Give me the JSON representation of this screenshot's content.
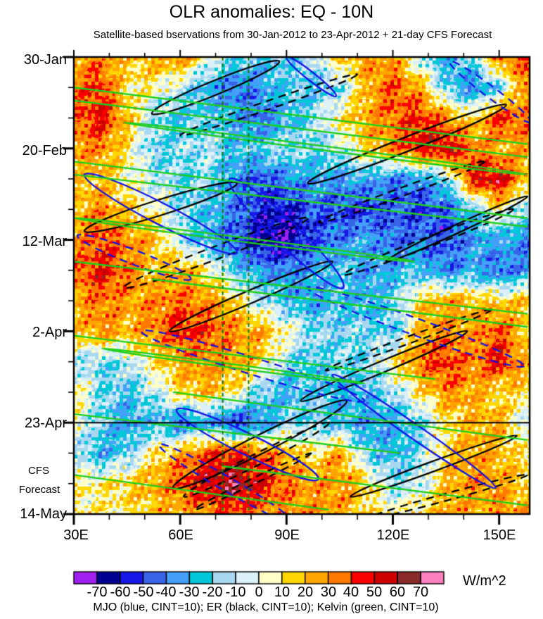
{
  "title": "OLR anomalies: EQ - 10N",
  "subtitle": "Satellite-based bservations from 30-Jan-2012 to 23-Apr-2012 + 21-day CFS Forecast",
  "caption": "MJO (blue, CINT=10); ER (black, CINT=10); Kelvin (green, CINT=10)",
  "axes": {
    "x": {
      "tick_labels": [
        "30E",
        "60E",
        "90E",
        "120E",
        "150E"
      ],
      "tick_lons": [
        30,
        60,
        90,
        120,
        150
      ],
      "minor_step_deg": 10,
      "range_lon": [
        30,
        158.6
      ]
    },
    "y": {
      "tick_labels": [
        "30-Jan",
        "20-Feb",
        "12-Mar",
        "2-Apr",
        "23-Apr",
        "14-May"
      ],
      "tick_days": [
        0,
        21,
        42,
        63,
        84,
        105
      ],
      "minor_step_days": 7,
      "range_days": [
        0,
        105
      ]
    },
    "forecast_label": [
      "CFS",
      "Forecast"
    ]
  },
  "colorbar": {
    "units": "W/m^2",
    "tick_labels": [
      "-70",
      "-60",
      "-50",
      "-40",
      "-30",
      "-20",
      "-10",
      "0",
      "10",
      "20",
      "30",
      "40",
      "50",
      "60",
      "70"
    ],
    "levels": [
      -70,
      -60,
      -50,
      -40,
      -30,
      -20,
      -10,
      0,
      10,
      20,
      30,
      40,
      50,
      60,
      70
    ],
    "colors": [
      "#A020F0",
      "#000090",
      "#1717E8",
      "#3864E8",
      "#44A0F8",
      "#00C8D8",
      "#A8D8F0",
      "#DCF0FA",
      "#FFFFC8",
      "#FFD700",
      "#FFA500",
      "#FF7800",
      "#FA0000",
      "#CD0000",
      "#8B2A2A",
      "#FF80C0"
    ]
  },
  "chart_data": {
    "type": "heatmap",
    "title": "OLR anomalies: EQ - 10N",
    "units": "W/m^2",
    "xlabel": "longitude",
    "ylabel": "time (30-Jan-2012 to 14-May-2012, forecast after 23-Apr)",
    "x_lons": [
      30,
      37.5,
      45,
      52.5,
      60,
      67.5,
      75,
      82.5,
      90,
      97.5,
      105,
      112.5,
      120,
      127.5,
      135,
      142.5,
      150,
      157.5
    ],
    "y_days": [
      0,
      7,
      14,
      21,
      28,
      35,
      42,
      49,
      56,
      63,
      70,
      77,
      84,
      91,
      98,
      105
    ],
    "y_dates": [
      "30-Jan",
      "6-Feb",
      "13-Feb",
      "20-Feb",
      "27-Feb",
      "5-Mar",
      "12-Mar",
      "19-Mar",
      "26-Mar",
      "2-Apr",
      "9-Apr",
      "16-Apr",
      "23-Apr",
      "30-Apr",
      "7-May",
      "14-May"
    ],
    "values_wm2_estimated": [
      [
        25,
        30,
        15,
        25,
        30,
        5,
        -15,
        -25,
        -20,
        -10,
        15,
        30,
        25,
        -10,
        -30,
        -15,
        35,
        40
      ],
      [
        30,
        45,
        10,
        5,
        -10,
        -30,
        -45,
        -35,
        -20,
        -25,
        -15,
        20,
        40,
        25,
        -20,
        -40,
        -20,
        30
      ],
      [
        35,
        50,
        20,
        -15,
        -25,
        -20,
        -30,
        -45,
        -30,
        -15,
        10,
        25,
        35,
        45,
        30,
        10,
        45,
        35
      ],
      [
        25,
        30,
        10,
        -20,
        -15,
        -10,
        -25,
        -20,
        -10,
        -20,
        -10,
        15,
        30,
        50,
        55,
        35,
        20,
        25
      ],
      [
        15,
        20,
        5,
        -10,
        -20,
        -15,
        -35,
        -50,
        -40,
        -30,
        -35,
        -30,
        -40,
        -35,
        -20,
        50,
        55,
        20
      ],
      [
        20,
        30,
        15,
        5,
        -15,
        -25,
        -40,
        -55,
        -60,
        -45,
        -50,
        -55,
        -45,
        -55,
        -45,
        -25,
        10,
        -20
      ],
      [
        25,
        40,
        30,
        20,
        -10,
        -30,
        -45,
        -65,
        -70,
        -50,
        -40,
        -30,
        -45,
        -40,
        -50,
        -35,
        -30,
        -40
      ],
      [
        35,
        50,
        35,
        15,
        25,
        10,
        -20,
        -35,
        -40,
        -30,
        -20,
        -35,
        -30,
        -25,
        -40,
        -30,
        -45,
        -35
      ],
      [
        20,
        35,
        25,
        30,
        35,
        30,
        15,
        -10,
        -25,
        -35,
        -25,
        -30,
        -20,
        15,
        25,
        20,
        15,
        20
      ],
      [
        15,
        30,
        20,
        30,
        45,
        40,
        30,
        25,
        5,
        -15,
        -20,
        -15,
        -25,
        20,
        30,
        25,
        40,
        15
      ],
      [
        -10,
        -20,
        -10,
        10,
        25,
        30,
        25,
        15,
        -15,
        -25,
        -15,
        -20,
        10,
        35,
        45,
        30,
        50,
        20
      ],
      [
        10,
        -15,
        -25,
        -10,
        15,
        20,
        10,
        -20,
        -30,
        -20,
        -30,
        -25,
        -15,
        10,
        30,
        25,
        10,
        15
      ],
      [
        5,
        -20,
        -35,
        -25,
        -45,
        -30,
        -55,
        -40,
        -15,
        -20,
        -25,
        -35,
        -30,
        -20,
        10,
        20,
        25,
        -10
      ],
      [
        -10,
        -30,
        -20,
        10,
        25,
        40,
        50,
        35,
        20,
        10,
        25,
        -20,
        -30,
        -15,
        15,
        25,
        20,
        10
      ],
      [
        5,
        10,
        15,
        25,
        40,
        55,
        65,
        50,
        35,
        25,
        30,
        15,
        -15,
        -10,
        20,
        30,
        25,
        15
      ],
      [
        10,
        5,
        10,
        15,
        20,
        30,
        35,
        30,
        25,
        30,
        25,
        10,
        5,
        15,
        25,
        20,
        30,
        25
      ]
    ],
    "overlay_colors": {
      "MJO": "#1212E8",
      "ER": "#000000",
      "Kelvin": "#1FCE1F",
      "reference_green": "#0B7A0B"
    },
    "reference_lines": {
      "vertical_dashed_green_lons": [
        72,
        79.3
      ],
      "horizontal_black_line_date": "23-Apr",
      "horizontal_black_line_day": 84
    },
    "waves": [
      {
        "type": "ER",
        "style": "solid",
        "path": [
          52,
          13,
          88,
          1
        ],
        "hw": 10
      },
      {
        "type": "ER",
        "style": "dashed",
        "path": [
          60,
          18,
          110,
          4
        ],
        "hw": 6
      },
      {
        "type": "ER",
        "style": "solid",
        "path": [
          33,
          40,
          76,
          29
        ],
        "hw": 11
      },
      {
        "type": "ER",
        "style": "solid",
        "path": [
          96,
          29,
          152,
          11
        ],
        "hw": 10
      },
      {
        "type": "ER",
        "style": "dashed",
        "path": [
          99,
          38,
          146,
          24
        ],
        "hw": 6
      },
      {
        "type": "ER",
        "style": "dashed",
        "path": [
          44,
          53,
          96,
          37
        ],
        "hw": 9
      },
      {
        "type": "ER",
        "style": "solid",
        "path": [
          57,
          63,
          103,
          47
        ],
        "hw": 9
      },
      {
        "type": "ER",
        "style": "dashed",
        "path": [
          106,
          50,
          154,
          35
        ],
        "hw": 7
      },
      {
        "type": "ER",
        "style": "solid",
        "path": [
          118,
          47,
          158,
          32
        ],
        "hw": 6
      },
      {
        "type": "ER",
        "style": "solid",
        "path": [
          94,
          79,
          141,
          63
        ],
        "hw": 8
      },
      {
        "type": "ER",
        "style": "dashed",
        "path": [
          101,
          72,
          148,
          58
        ],
        "hw": 5
      },
      {
        "type": "ER",
        "style": "solid",
        "path": [
          58,
          99,
          107,
          79
        ],
        "hw": 13
      },
      {
        "type": "ER",
        "style": "dashed",
        "path": [
          61,
          101,
          102,
          84
        ],
        "hw": 8
      },
      {
        "type": "ER",
        "style": "dashed",
        "path": [
          64,
          104,
          97,
          91
        ],
        "hw": 4
      },
      {
        "type": "ER",
        "style": "solid",
        "path": [
          108,
          101,
          155,
          87
        ],
        "hw": 7
      },
      {
        "type": "ER",
        "style": "dashed",
        "path": [
          113,
          106,
          158,
          96
        ],
        "hw": 5
      },
      {
        "type": "MJO",
        "style": "solid",
        "path": [
          33,
          27,
          76,
          45
        ],
        "hw": 15
      },
      {
        "type": "MJO",
        "style": "solid",
        "path": [
          74,
          28,
          106,
          53
        ],
        "hw": 17
      },
      {
        "type": "MJO",
        "style": "dashed",
        "path": [
          31,
          41,
          63,
          51
        ],
        "hw": 10
      },
      {
        "type": "MJO",
        "style": "dashed",
        "path": [
          49,
          63,
          112,
          79
        ],
        "hw": 12
      },
      {
        "type": "MJO",
        "style": "dashed",
        "path": [
          96,
          53,
          157,
          71
        ],
        "hw": 12
      },
      {
        "type": "MJO",
        "style": "solid",
        "path": [
          59,
          81,
          99,
          97
        ],
        "hw": 15
      },
      {
        "type": "MJO",
        "style": "solid",
        "path": [
          103,
          73,
          149,
          99
        ],
        "hw": 10
      },
      {
        "type": "MJO",
        "style": "dashed",
        "path": [
          54,
          89,
          92,
          107
        ],
        "hw": 10
      },
      {
        "type": "MJO",
        "style": "dashed",
        "path": [
          136,
          1,
          159,
          15
        ],
        "hw": 8
      },
      {
        "type": "MJO",
        "style": "solid",
        "path": [
          90,
          0,
          104,
          9
        ],
        "hw": 6
      },
      {
        "type": "Kelvin",
        "style": "solid",
        "path": [
          30,
          7,
          158,
          20
        ],
        "hw": 0
      },
      {
        "type": "Kelvin",
        "style": "solid",
        "path": [
          30,
          10,
          158,
          23
        ],
        "hw": 0
      },
      {
        "type": "Kelvin",
        "style": "solid",
        "path": [
          44,
          15,
          158,
          27
        ],
        "hw": 3
      },
      {
        "type": "Kelvin",
        "style": "solid",
        "path": [
          30,
          24,
          158,
          37
        ],
        "hw": 0
      },
      {
        "type": "Kelvin",
        "style": "solid",
        "path": [
          30,
          27,
          158,
          39
        ],
        "hw": 0
      },
      {
        "type": "Kelvin",
        "style": "solid",
        "path": [
          30,
          37,
          126,
          47
        ],
        "hw": 3
      },
      {
        "type": "Kelvin",
        "style": "solid",
        "path": [
          30,
          47,
          158,
          59
        ],
        "hw": 0
      },
      {
        "type": "Kelvin",
        "style": "solid",
        "path": [
          52,
          51,
          158,
          62
        ],
        "hw": 0
      },
      {
        "type": "Kelvin",
        "style": "solid",
        "path": [
          30,
          64,
          132,
          74
        ],
        "hw": 0
      },
      {
        "type": "Kelvin",
        "style": "solid",
        "path": [
          38,
          67,
          112,
          75
        ],
        "hw": 2.5
      },
      {
        "type": "Kelvin",
        "style": "solid",
        "path": [
          58,
          77,
          158,
          88
        ],
        "hw": 0
      },
      {
        "type": "Kelvin",
        "style": "solid",
        "path": [
          30,
          82,
          122,
          91
        ],
        "hw": 0
      },
      {
        "type": "Kelvin",
        "style": "solid",
        "path": [
          72,
          94,
          158,
          103
        ],
        "hw": 0
      },
      {
        "type": "Kelvin",
        "style": "solid",
        "path": [
          30,
          96,
          102,
          104
        ],
        "hw": 0
      }
    ]
  }
}
